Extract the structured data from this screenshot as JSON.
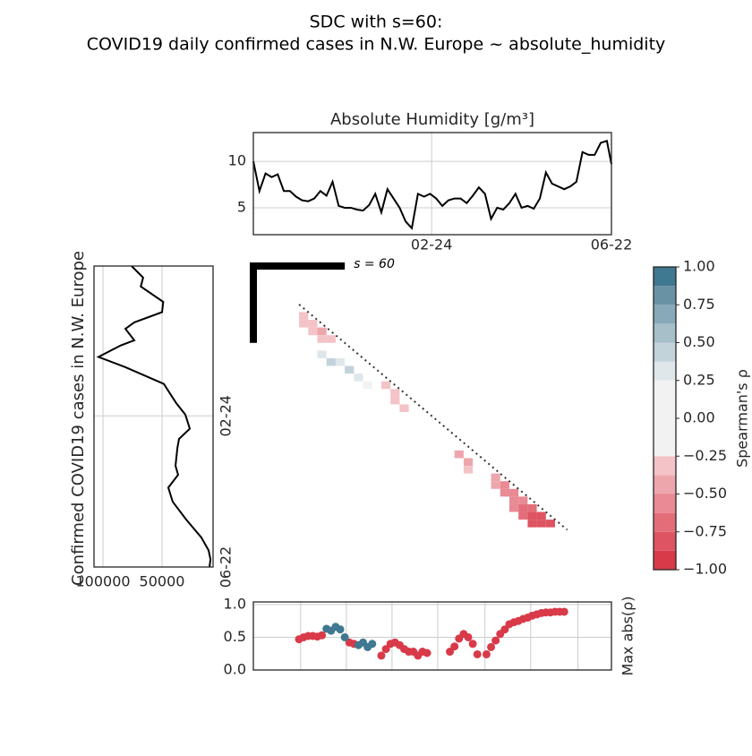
{
  "title": [
    "SDC with s=60:",
    "COVID19 daily confirmed cases in N.W. Europe ~ absolute_humidity"
  ],
  "chart_data": [
    {
      "type": "line",
      "title": "Absolute Humidity [g/m³]",
      "color": "#000000",
      "grid": true,
      "x": [
        0,
        4,
        8,
        12,
        16,
        20,
        24,
        28,
        32,
        36,
        40,
        44,
        48,
        52,
        56,
        60,
        64,
        68,
        72,
        76,
        80,
        84,
        88,
        92,
        96,
        100,
        104,
        108,
        112,
        116,
        120,
        124,
        128,
        132,
        136,
        140,
        144,
        148,
        152,
        156,
        160,
        164,
        168,
        172,
        176,
        180,
        184,
        188,
        192,
        196,
        200,
        204,
        208,
        212,
        216,
        220,
        224,
        228,
        232,
        235
      ],
      "values": [
        10.0,
        6.8,
        8.7,
        8.3,
        8.6,
        6.8,
        6.8,
        6.2,
        5.8,
        5.7,
        6.0,
        6.8,
        6.3,
        7.8,
        5.2,
        5.0,
        5.0,
        4.8,
        4.7,
        5.3,
        6.5,
        4.5,
        7.0,
        6.0,
        5.0,
        3.5,
        2.8,
        6.5,
        6.2,
        6.5,
        6.0,
        5.2,
        5.8,
        6.0,
        6.0,
        5.5,
        6.3,
        7.2,
        6.5,
        3.8,
        5.0,
        4.8,
        5.5,
        6.5,
        5.0,
        5.2,
        4.9,
        6.0,
        8.8,
        7.6,
        7.3,
        7.0,
        7.3,
        7.8,
        11.0,
        10.7,
        10.7,
        12.0,
        12.2,
        9.7
      ],
      "xlim": [
        0,
        235
      ],
      "ylim": [
        2.1,
        13.1
      ],
      "yticks": [
        5,
        10
      ],
      "xticks": [
        {
          "value": 117,
          "label": "02-24"
        },
        {
          "value": 235,
          "label": "06-22"
        }
      ]
    },
    {
      "type": "line",
      "orientation": "vertical",
      "ylabel": "Confirmed COVID19 cases in N.W. Europe",
      "color": "#000000",
      "grid": true,
      "y": [
        0,
        9,
        16,
        28,
        36,
        44,
        49,
        58,
        62,
        71,
        79,
        92,
        107,
        116,
        127,
        135,
        142,
        156,
        163,
        173,
        184,
        198,
        212,
        222,
        229,
        235
      ],
      "values": [
        75800,
        66000,
        68000,
        49000,
        50000,
        73500,
        81000,
        73500,
        85000,
        103800,
        81000,
        48500,
        38000,
        30300,
        26500,
        35600,
        37000,
        38600,
        36400,
        44700,
        41000,
        29500,
        16700,
        10600,
        9000,
        9800
      ],
      "xlim": [
        107600,
        6800
      ],
      "ylim": [
        235,
        0
      ],
      "xticks": [
        100000,
        50000
      ],
      "yticks": [
        {
          "value": 117,
          "label": "02-24"
        },
        {
          "value": 235,
          "label": "06-22"
        }
      ]
    },
    {
      "type": "heatmap",
      "xlim": [
        0,
        235
      ],
      "ylim": [
        235,
        0
      ],
      "window": 60,
      "window_label": "s = 60",
      "diagonal": [
        30,
        206
      ],
      "cells": [
        [
          30,
          36,
          -0.35
        ],
        [
          30,
          42,
          -0.3
        ],
        [
          36,
          42,
          -0.35
        ],
        [
          36,
          48,
          -0.3
        ],
        [
          42,
          48,
          -0.4
        ],
        [
          42,
          54,
          -0.35
        ],
        [
          48,
          54,
          -0.35
        ],
        [
          42,
          66,
          0.35
        ],
        [
          48,
          72,
          0.4
        ],
        [
          54,
          72,
          0.3
        ],
        [
          60,
          78,
          0.4
        ],
        [
          66,
          84,
          0.3
        ],
        [
          72,
          90,
          0.25
        ],
        [
          84,
          90,
          -0.3
        ],
        [
          90,
          96,
          -0.3
        ],
        [
          90,
          102,
          -0.25
        ],
        [
          96,
          108,
          -0.25
        ],
        [
          132,
          144,
          -0.4
        ],
        [
          138,
          150,
          -0.45
        ],
        [
          138,
          156,
          -0.3
        ],
        [
          156,
          162,
          -0.45
        ],
        [
          156,
          168,
          -0.45
        ],
        [
          162,
          168,
          -0.5
        ],
        [
          162,
          174,
          -0.55
        ],
        [
          168,
          174,
          -0.55
        ],
        [
          168,
          180,
          -0.6
        ],
        [
          168,
          186,
          -0.6
        ],
        [
          174,
          180,
          -0.6
        ],
        [
          174,
          186,
          -0.65
        ],
        [
          174,
          192,
          -0.7
        ],
        [
          180,
          186,
          -0.65
        ],
        [
          180,
          192,
          -0.75
        ],
        [
          180,
          198,
          -0.8
        ],
        [
          186,
          192,
          -0.75
        ],
        [
          186,
          198,
          -0.85
        ],
        [
          192,
          198,
          -0.85
        ]
      ],
      "colorbar": {
        "label": "Spearman's ρ",
        "lim": [
          -1,
          1
        ],
        "levels": [
          -1,
          -0.875,
          -0.75,
          -0.625,
          -0.5,
          -0.375,
          -0.25,
          0.25,
          0.375,
          0.5,
          0.625,
          0.75,
          0.875,
          1
        ],
        "colors": [
          "#d93a49",
          "#de5462",
          "#e36e7a",
          "#e98a94",
          "#eea6ad",
          "#f3c3c8",
          "#f2f2f2",
          "#dfe7eb",
          "#c3d3da",
          "#a6bfc9",
          "#88a9b7",
          "#6993a4",
          "#3f7891"
        ],
        "ticks": [
          {
            "value": 1,
            "label": "1.00"
          },
          {
            "value": 0.75,
            "label": "0.75"
          },
          {
            "value": 0.5,
            "label": "0.50"
          },
          {
            "value": 0.25,
            "label": "0.25"
          },
          {
            "value": 0,
            "label": "0.00"
          },
          {
            "value": -0.25,
            "label": "−0.25"
          },
          {
            "value": -0.5,
            "label": "−0.50"
          },
          {
            "value": -0.75,
            "label": "−0.75"
          },
          {
            "value": -1,
            "label": "−1.00"
          }
        ]
      }
    },
    {
      "type": "scatter",
      "ylabel": "Max abs(ρ)",
      "grid": true,
      "x": [
        30,
        33,
        36,
        39,
        42,
        45,
        48,
        51,
        54,
        57,
        60,
        63,
        66,
        69,
        72,
        75,
        78,
        81,
        84,
        87,
        90,
        93,
        96,
        99,
        102,
        105,
        108,
        111,
        114,
        117,
        120,
        123,
        126,
        129,
        132,
        135,
        138,
        141,
        144,
        147,
        150,
        153,
        156,
        159,
        162,
        165,
        168,
        171,
        174,
        177,
        180,
        183,
        186,
        189,
        192,
        195,
        198,
        201,
        204
      ],
      "series": [
        {
          "color": "#d93a49",
          "values": [
            0.47,
            0.5,
            0.52,
            0.52,
            0.51,
            0.53,
            null,
            null,
            null,
            null,
            null,
            0.42,
            0.4,
            null,
            null,
            null,
            null,
            null,
            0.22,
            0.32,
            0.4,
            0.42,
            0.38,
            0.32,
            0.28,
            0.28,
            0.22,
            0.28,
            0.26,
            null,
            null,
            null,
            null,
            0.28,
            0.36,
            0.48,
            0.55,
            0.5,
            0.4,
            0.24,
            null,
            0.24,
            0.35,
            0.45,
            0.55,
            0.62,
            0.7,
            0.73,
            0.75,
            0.78,
            0.8,
            0.83,
            0.85,
            0.87,
            0.88,
            0.88,
            0.89,
            0.89,
            0.89
          ]
        },
        {
          "color": "#3f7891",
          "values": [
            null,
            null,
            null,
            null,
            null,
            null,
            0.63,
            0.6,
            0.66,
            0.62,
            0.5,
            null,
            null,
            0.38,
            0.42,
            0.35,
            0.4,
            null,
            null,
            null,
            null,
            null,
            null,
            null,
            null,
            null,
            null,
            null,
            null,
            null,
            null,
            null,
            null,
            null,
            null,
            null,
            null,
            null,
            null,
            null,
            null,
            null,
            null,
            null,
            null,
            null,
            null,
            null,
            null,
            null,
            null,
            null,
            null,
            null,
            null,
            null,
            null,
            null,
            null
          ]
        }
      ],
      "xlim": [
        0,
        235
      ],
      "ylim": [
        0,
        1.04
      ],
      "yticks": [
        {
          "value": 0,
          "label": "0.0"
        },
        {
          "value": 0.5,
          "label": "0.5"
        },
        {
          "value": 1,
          "label": "1.0"
        }
      ],
      "xticks": [
        {
          "value": 31,
          "label": null
        },
        {
          "value": 61,
          "label": null
        },
        {
          "value": 91,
          "label": null
        },
        {
          "value": 121,
          "label": null
        },
        {
          "value": 152,
          "label": null
        },
        {
          "value": 182,
          "label": null
        },
        {
          "value": 213,
          "label": null
        }
      ]
    }
  ]
}
